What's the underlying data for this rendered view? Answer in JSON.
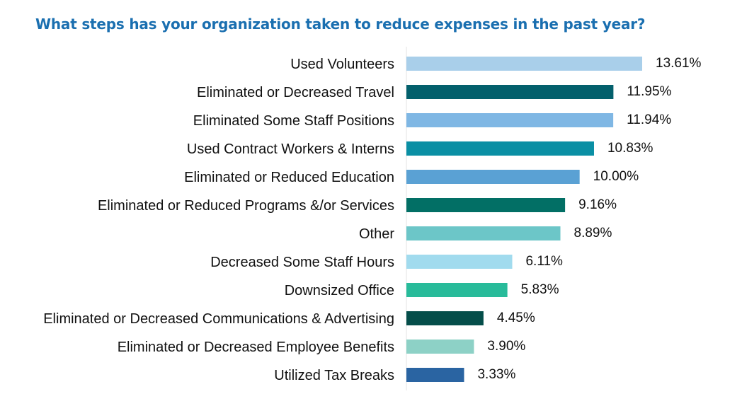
{
  "chart_data": {
    "type": "bar",
    "orientation": "horizontal",
    "title": "What steps has your organization taken to reduce expenses in the past year?",
    "categories": [
      "Used Volunteers",
      "Eliminated or Decreased Travel",
      "Eliminated Some Staff Positions",
      "Used Contract Workers & Interns",
      "Eliminated or Reduced Education",
      "Eliminated or Reduced Programs &/or Services",
      "Other",
      "Decreased Some Staff Hours",
      "Downsized Office",
      "Eliminated or Decreased Communications & Advertising",
      "Eliminated or Decreased Employee Benefits",
      "Utilized Tax Breaks"
    ],
    "values": [
      13.61,
      11.95,
      11.94,
      10.83,
      10.0,
      9.16,
      8.89,
      6.11,
      5.83,
      4.45,
      3.9,
      3.33
    ],
    "value_labels": [
      "13.61%",
      "11.95%",
      "11.94%",
      "10.83%",
      "10.00%",
      "9.16%",
      "8.89%",
      "6.11%",
      "5.83%",
      "4.45%",
      "3.90%",
      "3.33%"
    ],
    "colors": [
      "#A9CFEA",
      "#03606C",
      "#7FB7E4",
      "#0A8FA4",
      "#5AA1D4",
      "#026F65",
      "#6CC6C8",
      "#A1DBEE",
      "#28BB9A",
      "#054E4A",
      "#8DD1C6",
      "#2A64A2"
    ],
    "xlim": [
      0,
      15
    ],
    "grid": false,
    "legend": "none"
  }
}
